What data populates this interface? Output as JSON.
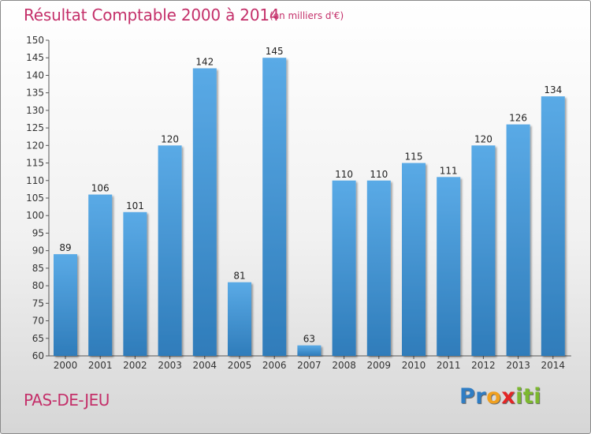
{
  "chart_data": {
    "type": "bar",
    "title": "Résultat Comptable 2000 à 2014",
    "subtitle": "(en milliers d'€)",
    "xlabel": "",
    "ylabel": "",
    "categories": [
      "2000",
      "2001",
      "2002",
      "2003",
      "2004",
      "2005",
      "2006",
      "2007",
      "2008",
      "2009",
      "2010",
      "2011",
      "2012",
      "2013",
      "2014"
    ],
    "values": [
      89,
      106,
      101,
      120,
      142,
      81,
      145,
      63,
      110,
      110,
      115,
      111,
      120,
      126,
      134
    ],
    "ylim": [
      60,
      150
    ],
    "yticks": [
      60,
      65,
      70,
      75,
      80,
      85,
      90,
      95,
      100,
      105,
      110,
      115,
      120,
      125,
      130,
      135,
      140,
      145,
      150
    ],
    "grid": false,
    "colors": {
      "bar_top": "#5aaae6",
      "bar_bottom": "#2f7cba",
      "title": "#c4306a"
    }
  },
  "commune": "PAS-DE-JEU",
  "logo": {
    "letters": [
      "P",
      "r",
      "o",
      "x",
      "i",
      "t",
      "i"
    ],
    "colors": [
      "#2f7dc4",
      "#2f7dc4",
      "#f0a020",
      "#e32626",
      "#7cb82f",
      "#7cb82f",
      "#7cb82f"
    ]
  }
}
